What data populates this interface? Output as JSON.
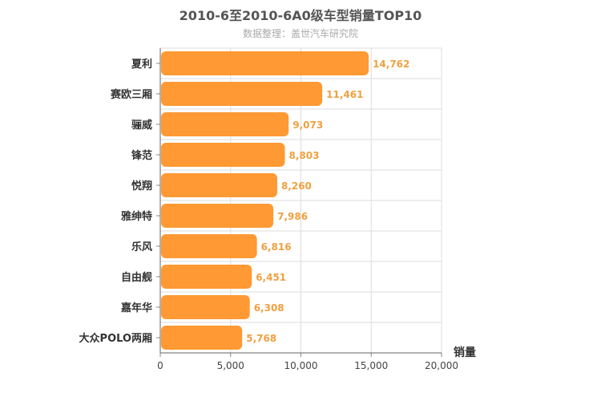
{
  "chart_data": {
    "type": "bar",
    "orientation": "horizontal",
    "title": "2010-6至2010-6A0级车型销量TOP10",
    "subtitle": "数据整理：盖世汽车研究院",
    "categories": [
      "夏利",
      "赛欧三厢",
      "骊威",
      "锋范",
      "悦翔",
      "雅绅特",
      "乐风",
      "自由舰",
      "嘉年华",
      "大众POLO两厢"
    ],
    "values": [
      14762,
      11461,
      9073,
      8803,
      8260,
      7986,
      6816,
      6451,
      6308,
      5768
    ],
    "value_labels": [
      "14,762",
      "11,461",
      "9,073",
      "8,803",
      "8,260",
      "7,986",
      "6,816",
      "6,451",
      "6,308",
      "5,768"
    ],
    "xticks": [
      0,
      5000,
      10000,
      15000,
      20000
    ],
    "xtick_labels": [
      "0",
      "5,000",
      "10,000",
      "15,000",
      "20,000"
    ],
    "xlim": [
      0,
      20000
    ],
    "value_axis_label": "销量",
    "grid": true,
    "bar_color": "#ff9933",
    "label_color": "#f0a040"
  }
}
